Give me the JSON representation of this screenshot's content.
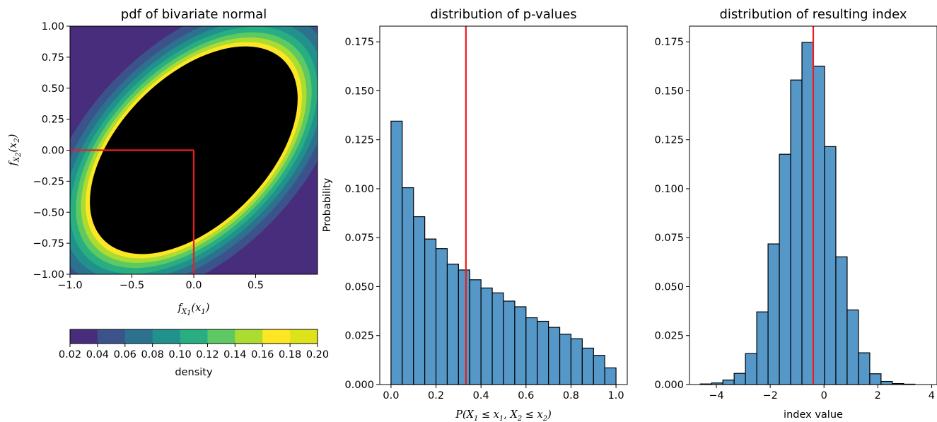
{
  "colors": {
    "bar": "#5597c7",
    "marker": "#ee1c1c",
    "viridis": [
      "#472d7b",
      "#3b528b",
      "#2c728e",
      "#21918c",
      "#28ae80",
      "#5ec962",
      "#addc30",
      "#fde725"
    ]
  },
  "chart_data": [
    {
      "type": "heatmap",
      "title": "pdf of bivariate normal",
      "xlabel": "f_{X_1}(x_1)",
      "ylabel": "f_{X_2}(x_2)",
      "xlim": [
        -1.0,
        1.0
      ],
      "ylim": [
        -1.0,
        1.0
      ],
      "xticks": [
        -1.0,
        -0.5,
        0.0,
        0.5
      ],
      "xticklabels": [
        "−1.0",
        "−0.5",
        "0.0",
        "0.5"
      ],
      "yticks": [
        1.0,
        0.75,
        0.5,
        0.25,
        0.0,
        -0.25,
        -0.5,
        -0.75,
        -1.0
      ],
      "yticklabels": [
        "1.00",
        "0.75",
        "0.50",
        "0.25",
        "0.00",
        "−0.25",
        "−0.50",
        "−0.75",
        "−1.00"
      ],
      "distribution": {
        "mean": [
          0,
          0
        ],
        "sigma": 0.5,
        "correlation": 0.5
      },
      "marker": {
        "x": 0.0,
        "y": 0.0
      },
      "colorbar": {
        "label": "density",
        "levels": [
          0.02,
          0.04,
          0.06,
          0.08,
          0.1,
          0.12,
          0.14,
          0.16,
          0.18,
          0.2
        ],
        "ticklabels": [
          "0.02",
          "0.04",
          "0.06",
          "0.08",
          "0.10",
          "0.12",
          "0.14",
          "0.16",
          "0.18",
          "0.20"
        ]
      }
    },
    {
      "type": "bar",
      "title": "distribution of p-values",
      "xlabel": "P(X_1 ≤ x_1, X_2 ≤ x_2)",
      "ylabel": "Probability",
      "xlim": [
        -0.05,
        1.05
      ],
      "ylim": [
        0,
        0.183
      ],
      "xticks": [
        0.0,
        0.2,
        0.4,
        0.6,
        0.8,
        1.0
      ],
      "xticklabels": [
        "0.0",
        "0.2",
        "0.4",
        "0.6",
        "0.8",
        "1.0"
      ],
      "yticks": [
        0.0,
        0.025,
        0.05,
        0.075,
        0.1,
        0.125,
        0.15,
        0.175
      ],
      "yticklabels": [
        "0.000",
        "0.025",
        "0.050",
        "0.075",
        "0.100",
        "0.125",
        "0.150",
        "0.175"
      ],
      "bin_start": 0.0,
      "bin_width": 0.05,
      "values": [
        0.1345,
        0.1005,
        0.0857,
        0.0743,
        0.0694,
        0.0615,
        0.0585,
        0.0535,
        0.0493,
        0.0468,
        0.0426,
        0.0397,
        0.0341,
        0.0323,
        0.0292,
        0.0257,
        0.0234,
        0.0186,
        0.0149,
        0.0085
      ],
      "marker_x": 0.333
    },
    {
      "type": "bar",
      "title": "distribution of resulting index",
      "xlabel": "index value",
      "ylabel": "",
      "xlim": [
        -5.0,
        4.2
      ],
      "ylim": [
        0,
        0.183
      ],
      "xticks": [
        -4,
        -2,
        0,
        2,
        4
      ],
      "xticklabels": [
        "−4",
        "−2",
        "0",
        "2",
        "4"
      ],
      "yticks": [
        0.0,
        0.025,
        0.05,
        0.075,
        0.1,
        0.125,
        0.15,
        0.175
      ],
      "yticklabels": [
        "0.000",
        "0.025",
        "0.050",
        "0.075",
        "0.100",
        "0.125",
        "0.150",
        "0.175"
      ],
      "bin_start": -4.6,
      "bin_width": 0.42,
      "values": [
        0.0003,
        0.0008,
        0.0023,
        0.0057,
        0.0158,
        0.0371,
        0.0718,
        0.1176,
        0.1555,
        0.1747,
        0.1626,
        0.1215,
        0.0652,
        0.0381,
        0.0162,
        0.0055,
        0.0016,
        0.0005,
        0.0002
      ],
      "marker_x": -0.4
    }
  ]
}
